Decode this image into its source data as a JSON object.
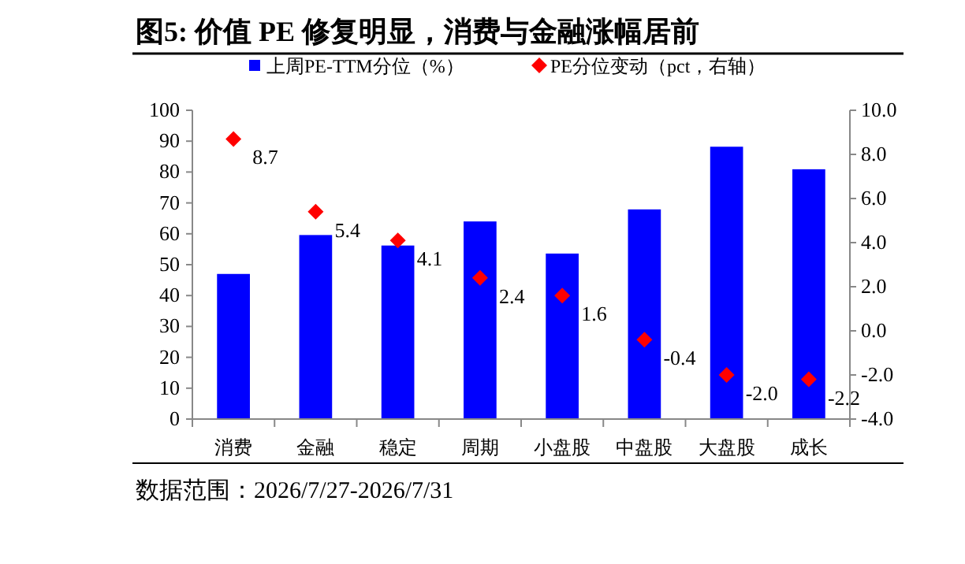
{
  "chart_data": {
    "type": "bar",
    "title": "图5:  价值 PE 修复明显，消费与金融涨幅居前",
    "categories": [
      "消费",
      "金融",
      "稳定",
      "周期",
      "小盘股",
      "中盘股",
      "大盘股",
      "成长"
    ],
    "series": [
      {
        "name": "上周PE-TTM分位（%）",
        "color": "#0000ff",
        "values": [
          47,
          59.6,
          56.2,
          64,
          53.6,
          67.9,
          88.2,
          80.9
        ]
      },
      {
        "name": "PE分位变动（pct，右轴）",
        "type": "scatter",
        "axis": "y2",
        "marker": "diamond",
        "color": "#ff0000",
        "values": [
          8.7,
          5.4,
          4.1,
          2.4,
          1.6,
          -0.4,
          -2.0,
          -2.2
        ],
        "value_labels": [
          "8.7",
          "5.4",
          "4.1",
          "2.4",
          "1.6",
          "-0.4",
          "-2.0",
          "-2.2"
        ]
      }
    ],
    "ylim": [
      0,
      100
    ],
    "yticks": [
      0,
      10,
      20,
      30,
      40,
      50,
      60,
      70,
      80,
      90,
      100
    ],
    "y2lim": [
      -4,
      10
    ],
    "y2ticks": [
      {
        "value": -4,
        "label": "-4.0"
      },
      {
        "value": -2,
        "label": "-2.0"
      },
      {
        "value": 0,
        "label": "0.0"
      },
      {
        "value": 2,
        "label": "2.0"
      },
      {
        "value": 4,
        "label": "4.0"
      },
      {
        "value": 6,
        "label": "6.0"
      },
      {
        "value": 8,
        "label": "8.0"
      },
      {
        "value": 10,
        "label": "10.0"
      }
    ],
    "legend": "top",
    "grid": false,
    "annotations": [
      "数据范围：2026/7/27-2026/7/31"
    ]
  }
}
